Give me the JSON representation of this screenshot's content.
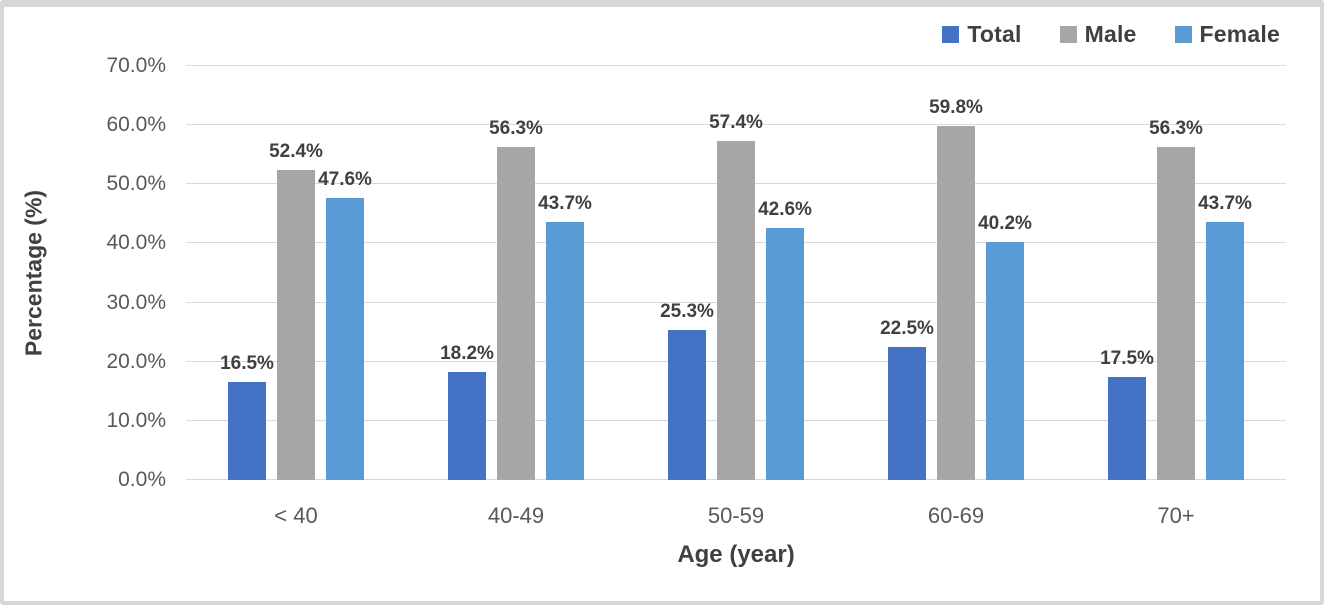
{
  "frame": {
    "background": "#ffffff",
    "border_color": "#d7d7d7"
  },
  "legend": {
    "position": "top-right",
    "items": [
      {
        "label": "Total",
        "color": "#4472C4"
      },
      {
        "label": "Male",
        "color": "#A6A6A6"
      },
      {
        "label": "Female",
        "color": "#5B9BD5"
      }
    ]
  },
  "chart_data": {
    "type": "bar",
    "title": "",
    "xlabel": "Age (year)",
    "ylabel": "Percentage (%)",
    "ylim": [
      0,
      70
    ],
    "grid": true,
    "gridline_color": "#d9d9d9",
    "legend_position": "top-right",
    "yticks": [
      0,
      10,
      20,
      30,
      40,
      50,
      60,
      70
    ],
    "ytick_labels": [
      "0.0%",
      "10.0%",
      "20.0%",
      "30.0%",
      "40.0%",
      "50.0%",
      "60.0%",
      "70.0%"
    ],
    "categories": [
      "< 40",
      "40-49",
      "50-59",
      "60-69",
      "70+"
    ],
    "series": [
      {
        "name": "Total",
        "color": "#4472C4",
        "values": [
          16.5,
          18.2,
          25.3,
          22.5,
          17.5
        ],
        "labels": [
          "16.5%",
          "18.2%",
          "25.3%",
          "22.5%",
          "17.5%"
        ]
      },
      {
        "name": "Male",
        "color": "#A6A6A6",
        "values": [
          52.4,
          56.3,
          57.4,
          59.8,
          56.3
        ],
        "labels": [
          "52.4%",
          "56.3%",
          "57.4%",
          "59.8%",
          "56.3%"
        ]
      },
      {
        "name": "Female",
        "color": "#5B9BD5",
        "values": [
          47.6,
          43.7,
          42.6,
          40.2,
          43.7
        ],
        "labels": [
          "47.6%",
          "43.7%",
          "42.6%",
          "40.2%",
          "43.7%"
        ]
      }
    ]
  }
}
